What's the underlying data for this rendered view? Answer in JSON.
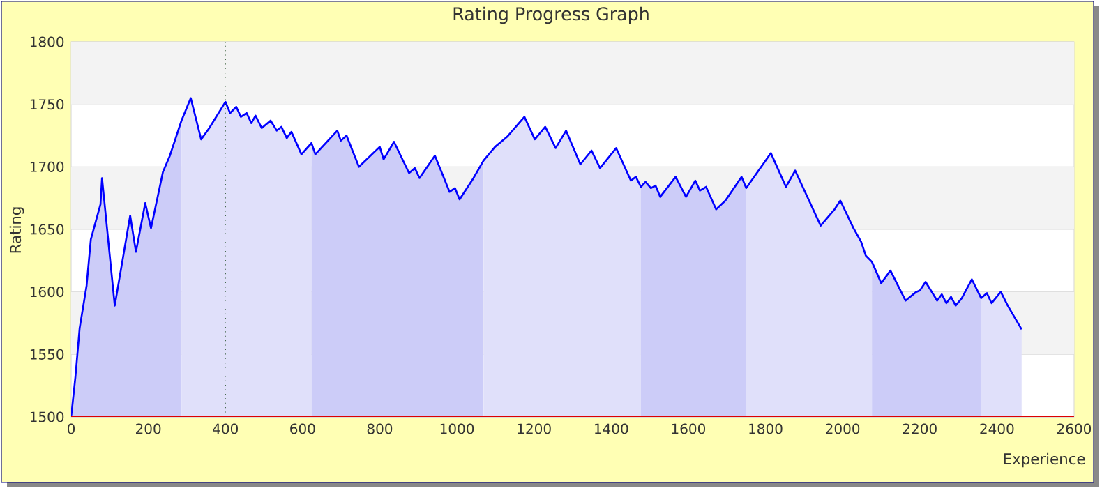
{
  "chart_data": {
    "type": "area",
    "title": "Rating Progress Graph",
    "xlabel": "Experience",
    "ylabel": "Rating",
    "xlim": [
      0,
      2600
    ],
    "xticks": [
      0,
      200,
      400,
      600,
      800,
      1000,
      1200,
      1400,
      1600,
      1800,
      2000,
      2200,
      2400,
      2600
    ],
    "ylim": [
      1500,
      1800
    ],
    "yticks": [
      1500,
      1550,
      1600,
      1650,
      1700,
      1750,
      1800
    ],
    "grid": "y",
    "x": [
      0,
      11,
      22,
      40,
      51,
      76,
      80,
      113,
      153,
      168,
      192,
      207,
      238,
      256,
      286,
      310,
      337,
      358,
      400,
      412,
      428,
      440,
      455,
      467,
      478,
      494,
      517,
      533,
      545,
      559,
      571,
      597,
      623,
      633,
      690,
      699,
      714,
      746,
      800,
      810,
      837,
      876,
      891,
      903,
      943,
      981,
      995,
      1007,
      1043,
      1069,
      1099,
      1130,
      1175,
      1202,
      1229,
      1256,
      1283,
      1320,
      1349,
      1371,
      1413,
      1451,
      1464,
      1477,
      1489,
      1503,
      1515,
      1527,
      1567,
      1594,
      1618,
      1630,
      1646,
      1672,
      1696,
      1738,
      1750,
      1814,
      1853,
      1877,
      1913,
      1943,
      1979,
      1994,
      2028,
      2048,
      2060,
      2076,
      2100,
      2124,
      2163,
      2191,
      2200,
      2215,
      2245,
      2257,
      2269,
      2281,
      2293,
      2309,
      2335,
      2359,
      2374,
      2386,
      2410,
      2428,
      2464
    ],
    "series": [
      {
        "color": "#ccccf8",
        "x": [
          0,
          11,
          22,
          40,
          51,
          76,
          80,
          113,
          153,
          168,
          192,
          207,
          238,
          256,
          286
        ],
        "values": [
          1500,
          1532,
          1571,
          1605,
          1642,
          1670,
          1691,
          1589,
          1661,
          1632,
          1671,
          1651,
          1696,
          1709,
          1737
        ]
      },
      {
        "color": "#e0e0fa",
        "x": [
          286,
          310,
          337,
          358,
          400,
          412,
          428,
          440,
          455,
          467,
          478,
          494,
          517,
          533,
          545,
          559,
          571,
          597,
          623
        ],
        "values": [
          1737,
          1755,
          1722,
          1731,
          1752,
          1743,
          1748,
          1740,
          1743,
          1735,
          1741,
          1731,
          1737,
          1729,
          1732,
          1723,
          1728,
          1710,
          1719
        ]
      },
      {
        "color": "#ccccf8",
        "x": [
          623,
          633,
          690,
          699,
          714,
          746,
          800,
          810,
          837,
          876,
          891,
          903,
          943,
          981,
          995,
          1007,
          1043,
          1069
        ],
        "values": [
          1719,
          1710,
          1729,
          1721,
          1725,
          1700,
          1716,
          1706,
          1720,
          1695,
          1699,
          1691,
          1709,
          1680,
          1683,
          1674,
          1691,
          1705
        ]
      },
      {
        "color": "#e0e0fa",
        "x": [
          1069,
          1099,
          1130,
          1175,
          1202,
          1229,
          1256,
          1283,
          1320,
          1349,
          1371,
          1413,
          1451,
          1464,
          1477
        ],
        "values": [
          1705,
          1716,
          1724,
          1740,
          1722,
          1732,
          1715,
          1729,
          1702,
          1713,
          1699,
          1715,
          1689,
          1692,
          1684
        ]
      },
      {
        "color": "#ccccf8",
        "x": [
          1477,
          1489,
          1503,
          1515,
          1527,
          1567,
          1594,
          1618,
          1630,
          1646,
          1672,
          1696,
          1738,
          1750
        ],
        "values": [
          1684,
          1688,
          1683,
          1685,
          1676,
          1692,
          1676,
          1689,
          1681,
          1684,
          1666,
          1673,
          1692,
          1683
        ]
      },
      {
        "color": "#e0e0fa",
        "x": [
          1750,
          1814,
          1853,
          1877,
          1913,
          1943,
          1979,
          1994,
          2028,
          2048,
          2060,
          2076
        ],
        "values": [
          1683,
          1711,
          1684,
          1697,
          1673,
          1653,
          1666,
          1673,
          1651,
          1640,
          1629,
          1624
        ]
      },
      {
        "color": "#ccccf8",
        "x": [
          2076,
          2100,
          2124,
          2163,
          2191,
          2200,
          2215,
          2245,
          2257,
          2269,
          2281,
          2293,
          2309,
          2335,
          2359
        ],
        "values": [
          1624,
          1607,
          1617,
          1593,
          1600,
          1601,
          1608,
          1593,
          1598,
          1591,
          1596,
          1589,
          1595,
          1610,
          1595
        ]
      },
      {
        "color": "#e0e0fa",
        "x": [
          2359,
          2374,
          2386,
          2410,
          2428,
          2464
        ],
        "values": [
          1595,
          1599,
          1591,
          1600,
          1589,
          1570
        ]
      },
      {
        "type": "line",
        "color": "#0000ff",
        "values": [
          1500,
          1532,
          1571,
          1605,
          1642,
          1670,
          1691,
          1589,
          1661,
          1632,
          1671,
          1651,
          1696,
          1709,
          1737,
          1755,
          1722,
          1731,
          1752,
          1743,
          1748,
          1740,
          1743,
          1735,
          1741,
          1731,
          1737,
          1729,
          1732,
          1723,
          1728,
          1710,
          1719,
          1710,
          1729,
          1721,
          1725,
          1700,
          1716,
          1706,
          1720,
          1695,
          1699,
          1691,
          1709,
          1680,
          1683,
          1674,
          1691,
          1705,
          1716,
          1724,
          1740,
          1722,
          1732,
          1715,
          1729,
          1702,
          1713,
          1699,
          1715,
          1689,
          1692,
          1684,
          1688,
          1683,
          1685,
          1676,
          1692,
          1676,
          1689,
          1681,
          1684,
          1666,
          1673,
          1692,
          1683,
          1711,
          1684,
          1697,
          1673,
          1653,
          1666,
          1673,
          1651,
          1640,
          1629,
          1624,
          1607,
          1617,
          1593,
          1600,
          1601,
          1608,
          1593,
          1598,
          1591,
          1596,
          1589,
          1595,
          1610,
          1595,
          1599,
          1591,
          1600,
          1589,
          1570
        ]
      }
    ],
    "ref_lines": [
      {
        "axis": "x",
        "value": 400,
        "color": "#003300",
        "line_style": "dotted"
      }
    ]
  }
}
